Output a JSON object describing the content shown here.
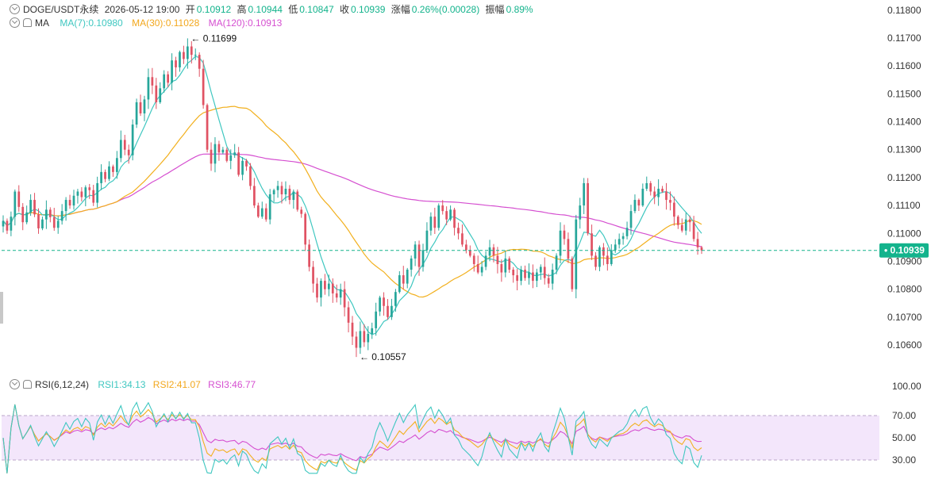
{
  "header": {
    "symbol": "DOGE/USDT永续",
    "datetime": "2026-05-12 19:00",
    "open_label": "开",
    "open": "0.10912",
    "high_label": "高",
    "high": "0.10944",
    "low_label": "低",
    "low": "0.10847",
    "close_label": "收",
    "close": "0.10939",
    "change_label": "涨幅",
    "change": "0.26%(0.00028)",
    "amplitude_label": "振幅",
    "amplitude": "0.89%"
  },
  "ma_header": {
    "label": "MA",
    "ma7": "MA(7):0.10980",
    "ma30": "MA(30):0.11028",
    "ma120": "MA(120):0.10913"
  },
  "rsi_header": {
    "label": "RSI(6,12,24)",
    "rsi1": "RSI1:34.13",
    "rsi2": "RSI2:41.07",
    "rsi3": "RSI3:46.77"
  },
  "colors": {
    "up": "#26a69a",
    "down": "#e05263",
    "ma7": "#3fc7c0",
    "ma30": "#f2b01e",
    "ma120": "#d54fd0",
    "rsi1": "#3fc7c0",
    "rsi2": "#f2b01e",
    "rsi3": "#d54fd0",
    "rsi_band": "#f3e6fb",
    "current_price": "#13b38c"
  },
  "chart_data": [
    {
      "type": "candlestick",
      "yticks": [
        "0.11800",
        "0.11700",
        "0.11600",
        "0.11500",
        "0.11400",
        "0.11300",
        "0.11200",
        "0.11100",
        "0.11000",
        "0.10900",
        "0.10800",
        "0.10700",
        "0.10600"
      ],
      "ylim": [
        0.10545,
        0.1183
      ],
      "current_price": 0.10939,
      "current_price_label": "0.10939",
      "annotations": [
        {
          "label": "0.11699",
          "value": 0.11699,
          "kind": "high"
        },
        {
          "label": "0.10557",
          "value": 0.10557,
          "kind": "low"
        }
      ],
      "series_close": [
        0.11045,
        0.1101,
        0.1106,
        0.1115,
        0.11095,
        0.1104,
        0.11075,
        0.1112,
        0.11068,
        0.11018,
        0.1105,
        0.11085,
        0.11058,
        0.1102,
        0.11045,
        0.1108,
        0.1112,
        0.111,
        0.11135,
        0.1115,
        0.1113,
        0.11165,
        0.11155,
        0.1111,
        0.1118,
        0.1122,
        0.11195,
        0.1124,
        0.1122,
        0.1127,
        0.11335,
        0.113,
        0.1128,
        0.1139,
        0.1147,
        0.1143,
        0.1148,
        0.1156,
        0.1153,
        0.1147,
        0.1152,
        0.1157,
        0.1154,
        0.1162,
        0.11595,
        0.1165,
        0.11625,
        0.1167,
        0.1164,
        0.1164,
        0.1159,
        0.1146,
        0.113,
        0.1125,
        0.1132,
        0.1129,
        0.113,
        0.1126,
        0.1128,
        0.1129,
        0.1121,
        0.1126,
        0.1124,
        0.1117,
        0.111,
        0.1106,
        0.1109,
        0.1105,
        0.1114,
        0.11155,
        0.1117,
        0.1114,
        0.1116,
        0.1112,
        0.1115,
        0.11085,
        0.1107,
        0.1096,
        0.1088,
        0.1082,
        0.1077,
        0.1083,
        0.108,
        0.1082,
        0.10785,
        0.1077,
        0.108,
        0.10735,
        0.1068,
        0.1063,
        0.1059,
        0.1065,
        0.1061,
        0.1064,
        0.1066,
        0.1072,
        0.1077,
        0.1074,
        0.107,
        0.1074,
        0.1079,
        0.1085,
        0.1082,
        0.1087,
        0.1091,
        0.1096,
        0.1088,
        0.1094,
        0.1101,
        0.1106,
        0.1102,
        0.111,
        0.1108,
        0.1105,
        0.11085,
        0.1102,
        0.11,
        0.1096,
        0.1094,
        0.1092,
        0.1089,
        0.1086,
        0.1088,
        0.1092,
        0.1095,
        0.1092,
        0.1089,
        0.1086,
        0.1091,
        0.1087,
        0.1085,
        0.1083,
        0.1087,
        0.1084,
        0.1086,
        0.1083,
        0.1086,
        0.1088,
        0.1084,
        0.1082,
        0.1087,
        0.1092,
        0.1101,
        0.1098,
        0.1091,
        0.108,
        0.1105,
        0.111,
        0.1118,
        0.11,
        0.1092,
        0.1088,
        0.1095,
        0.1092,
        0.1089,
        0.1094,
        0.1096,
        0.1098,
        0.1099,
        0.1102,
        0.1108,
        0.1112,
        0.111,
        0.1116,
        0.1118,
        0.1115,
        0.1113,
        0.1116,
        0.1115,
        0.1112,
        0.1111,
        0.1106,
        0.1103,
        0.1101,
        0.1105,
        0.1104,
        0.1098,
        0.1095,
        0.10939
      ]
    },
    {
      "type": "line",
      "title": "RSI(6,12,24)",
      "yticks": [
        "100.00",
        "70.00",
        "50.00",
        "30.00"
      ],
      "ylim": [
        22,
        100
      ],
      "band": [
        30,
        70
      ],
      "series": [
        {
          "name": "RSI1",
          "last": 34.13
        },
        {
          "name": "RSI2",
          "last": 41.07
        },
        {
          "name": "RSI3",
          "last": 46.77
        }
      ]
    }
  ]
}
